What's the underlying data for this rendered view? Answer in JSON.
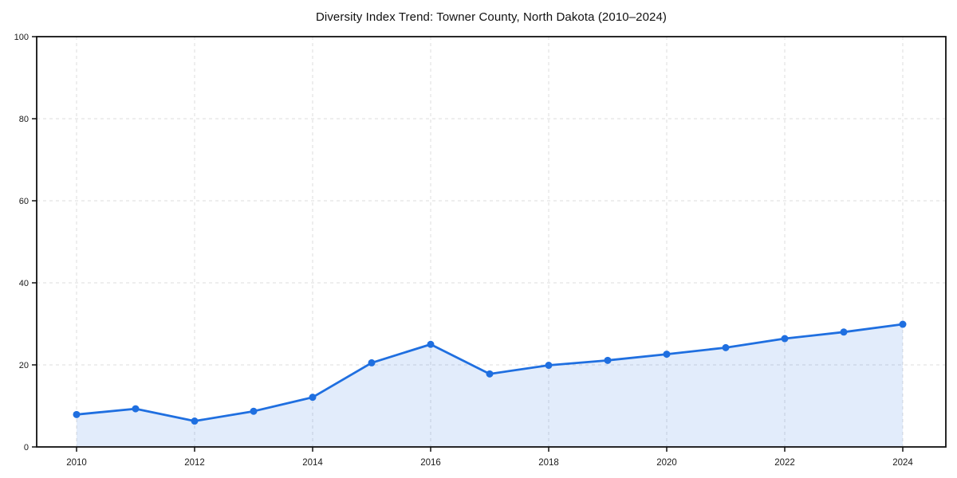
{
  "chart_data": {
    "type": "area",
    "title": "Diversity Index Trend: Towner County, North Dakota (2010–2024)",
    "x": [
      2010,
      2011,
      2012,
      2013,
      2014,
      2015,
      2016,
      2017,
      2018,
      2019,
      2020,
      2021,
      2022,
      2023,
      2024
    ],
    "series": [
      {
        "name": "Diversity Index",
        "values": [
          7.9,
          9.3,
          6.3,
          8.7,
          12.1,
          20.5,
          25.0,
          17.8,
          19.9,
          21.1,
          22.6,
          24.2,
          26.4,
          28.0,
          29.9
        ]
      }
    ],
    "xlabel": "",
    "ylabel": "",
    "ylim": [
      0,
      100
    ],
    "yticks": [
      0,
      20,
      40,
      60,
      80,
      100
    ],
    "xticks": [
      2010,
      2012,
      2014,
      2016,
      2018,
      2020,
      2022,
      2024
    ],
    "grid": true,
    "grid_style": "dashed",
    "legend": false,
    "colors": {
      "line": "#1f6fe0",
      "marker": "#1f6fe0",
      "fill": "#1f6fe0",
      "fill_opacity": 0.13,
      "grid": "#dcdcdc",
      "spine": "#111111",
      "tick_text": "#1a1a1a",
      "background": "#ffffff"
    }
  }
}
